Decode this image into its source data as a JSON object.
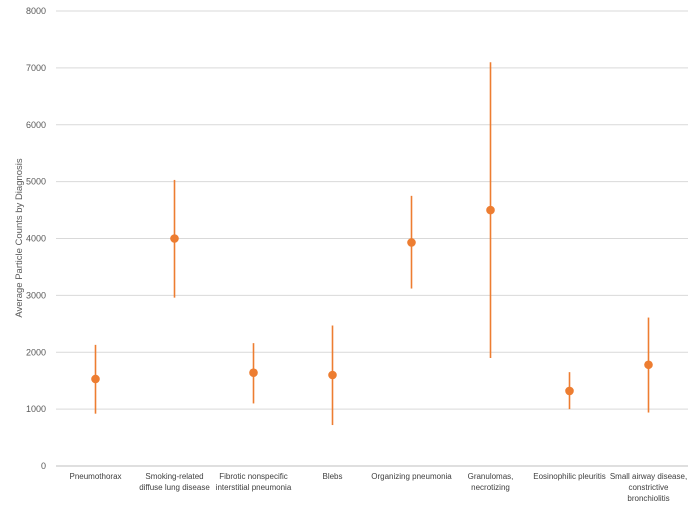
{
  "chart_data": {
    "type": "scatter",
    "title": "",
    "xlabel": "",
    "ylabel": "Average Particle Counts by Diagnosis",
    "ylim": [
      0,
      8000
    ],
    "yticks": [
      0,
      1000,
      2000,
      3000,
      4000,
      5000,
      6000,
      7000,
      8000
    ],
    "grid": true,
    "legend": "none",
    "marker_color": "#ED7D31",
    "tick_color": "#843C0C",
    "categories": [
      "Pneumothorax",
      "Smoking-related diffuse lung disease",
      "Fibrotic nonspecific interstitial pneumonia",
      "Blebs",
      "Organizing pneumonia",
      "Granulomas, necrotizing",
      "Eosinophilic pleuritis",
      "Small airway disease, constrictive bronchiolitis"
    ],
    "category_lines": [
      [
        "Pneumothorax"
      ],
      [
        "Smoking-related",
        "diffuse lung disease"
      ],
      [
        "Fibrotic nonspecific",
        "interstitial pneumonia"
      ],
      [
        "Blebs"
      ],
      [
        "Organizing pneumonia"
      ],
      [
        "Granulomas,",
        "necrotizing"
      ],
      [
        "Eosinophilic pleuritis"
      ],
      [
        "Small airway disease,",
        "constrictive",
        "bronchiolitis"
      ]
    ],
    "series": [
      {
        "values": [
          1530,
          4000,
          1640,
          1600,
          3930,
          4500,
          1320,
          1780
        ],
        "lower": [
          920,
          2960,
          1100,
          720,
          3120,
          1900,
          1000,
          940
        ],
        "upper": [
          2130,
          5030,
          2160,
          2470,
          4750,
          7100,
          1650,
          2610
        ]
      }
    ]
  }
}
